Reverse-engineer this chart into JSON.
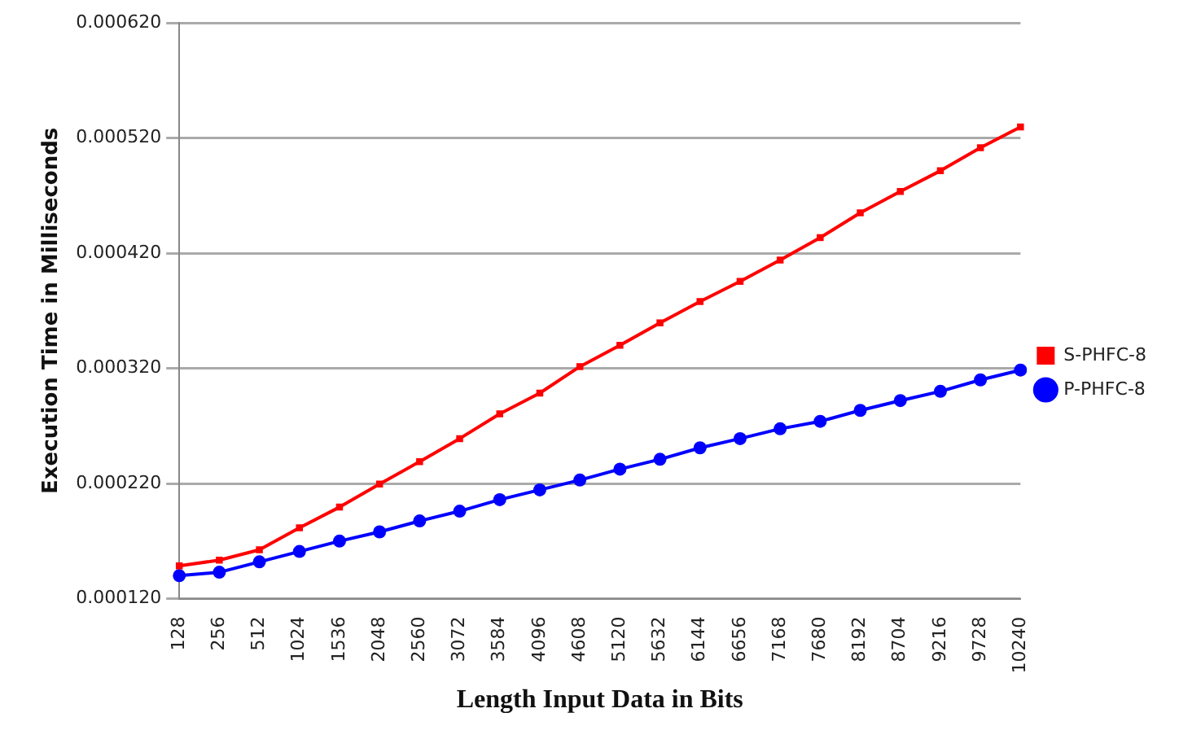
{
  "chart_data": {
    "type": "line",
    "xlabel": "Length Input Data in Bits",
    "ylabel": "Execution Time in Milliseconds",
    "categories": [
      "128",
      "256",
      "512",
      "1024",
      "1536",
      "2048",
      "2560",
      "3072",
      "3584",
      "4096",
      "4608",
      "5120",
      "5632",
      "6144",
      "6656",
      "7168",
      "7680",
      "8192",
      "8704",
      "9216",
      "9728",
      "10240"
    ],
    "series": [
      {
        "name": "S-PHFC-8",
        "color": "#ff0000",
        "marker": "square",
        "values": [
          0.0001485,
          0.0001535,
          0.0001625,
          0.0001815,
          0.0001995,
          0.0002195,
          0.000239,
          0.000259,
          0.0002805,
          0.0002985,
          0.0003215,
          0.00034,
          0.0003595,
          0.000378,
          0.0003955,
          0.000414,
          0.0004335,
          0.000455,
          0.0004735,
          0.0004915,
          0.0005115,
          0.0005295
        ]
      },
      {
        "name": "P-PHFC-8",
        "color": "#0000ff",
        "marker": "circle",
        "values": [
          0.00014,
          0.000143,
          0.000152,
          0.000161,
          0.00017,
          0.000178,
          0.0001875,
          0.000196,
          0.000206,
          0.0002145,
          0.000223,
          0.0002325,
          0.000241,
          0.000251,
          0.000259,
          0.0002675,
          0.000274,
          0.0002835,
          0.000292,
          0.0003,
          0.00031,
          0.0003185
        ]
      }
    ],
    "ylim": [
      0.00012,
      0.00062
    ],
    "yticks": [
      {
        "value": 0.00012,
        "label": "0.000120"
      },
      {
        "value": 0.00022,
        "label": "0.000220"
      },
      {
        "value": 0.00032,
        "label": "0.000320"
      },
      {
        "value": 0.00042,
        "label": "0.000420"
      },
      {
        "value": 0.00052,
        "label": "0.000520"
      },
      {
        "value": 0.00062,
        "label": "0.000620"
      }
    ],
    "grid": "y",
    "legend": "right"
  }
}
